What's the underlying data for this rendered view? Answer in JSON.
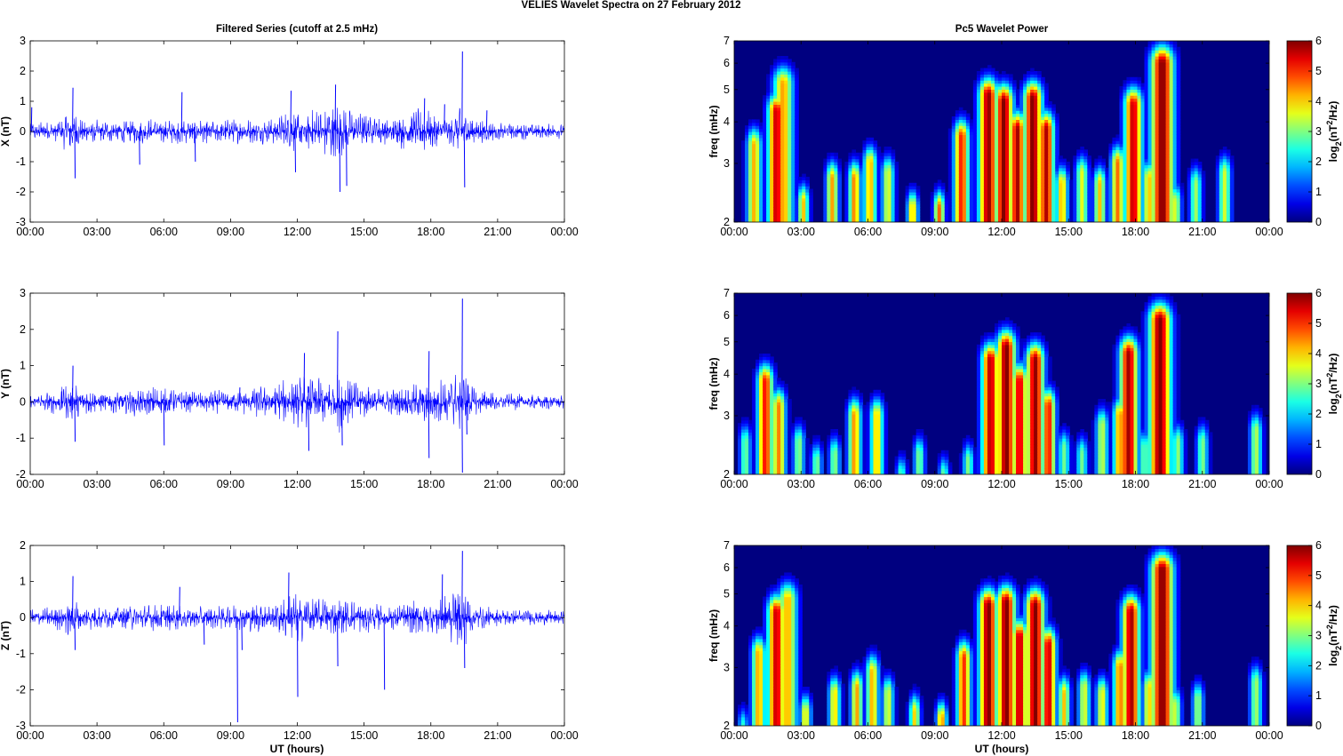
{
  "title": "VELIES Wavelet Spectra on 27 February  2012",
  "left_title": "Filtered Series (cutoff at 2.5 mHz)",
  "right_title": "Pc5 Wavelet Power",
  "x_label": "UT (hours)",
  "colors": {
    "trace": "#0000ff"
  },
  "chart_data": [
    {
      "type": "line",
      "ylabel": "X (nT)",
      "xlim": [
        0,
        24
      ],
      "ylim": [
        -3,
        3
      ],
      "xticks": [
        0,
        3,
        6,
        9,
        12,
        15,
        18,
        21,
        24
      ],
      "xticklabels": [
        "00:00",
        "03:00",
        "06:00",
        "09:00",
        "12:00",
        "15:00",
        "18:00",
        "21:00",
        "00:00"
      ],
      "yticks": [
        -3,
        -2,
        -1,
        0,
        1,
        2,
        3
      ],
      "yticklabels": [
        "-3",
        "-2",
        "-1",
        "0",
        "1",
        "2",
        "3"
      ],
      "noise": [
        [
          0,
          0.35
        ],
        [
          1.2,
          0.35
        ],
        [
          1.8,
          0.9
        ],
        [
          2.2,
          0.5
        ],
        [
          3,
          0.4
        ],
        [
          5,
          0.45
        ],
        [
          8,
          0.4
        ],
        [
          11,
          0.45
        ],
        [
          11.7,
          0.8
        ],
        [
          12.3,
          0.7
        ],
        [
          13,
          0.8
        ],
        [
          13.8,
          1.1
        ],
        [
          14.5,
          0.7
        ],
        [
          16,
          0.45
        ],
        [
          17.5,
          0.8
        ],
        [
          18.3,
          0.6
        ],
        [
          19,
          0.5
        ],
        [
          19.4,
          1.1
        ],
        [
          19.8,
          0.5
        ],
        [
          21,
          0.3
        ],
        [
          24,
          0.25
        ]
      ],
      "spikes": [
        [
          0.05,
          0.8
        ],
        [
          1.9,
          1.45
        ],
        [
          2.0,
          -1.55
        ],
        [
          4.9,
          -1.1
        ],
        [
          6.8,
          1.3
        ],
        [
          7.4,
          -1.0
        ],
        [
          11.7,
          1.35
        ],
        [
          11.9,
          -1.35
        ],
        [
          13.7,
          1.55
        ],
        [
          13.9,
          -2.0
        ],
        [
          14.2,
          -1.8
        ],
        [
          17.7,
          1.1
        ],
        [
          18.6,
          0.9
        ],
        [
          19.4,
          2.65
        ],
        [
          19.5,
          -1.85
        ],
        [
          20.5,
          0.7
        ]
      ]
    },
    {
      "type": "line",
      "ylabel": "Y (nT)",
      "xlim": [
        0,
        24
      ],
      "ylim": [
        -2,
        3
      ],
      "xticks": [
        0,
        3,
        6,
        9,
        12,
        15,
        18,
        21,
        24
      ],
      "xticklabels": [
        "00:00",
        "03:00",
        "06:00",
        "09:00",
        "12:00",
        "15:00",
        "18:00",
        "21:00",
        "00:00"
      ],
      "yticks": [
        -2,
        -1,
        0,
        1,
        2,
        3
      ],
      "yticklabels": [
        "-2",
        "-1",
        "0",
        "1",
        "2",
        "3"
      ],
      "noise": [
        [
          0,
          0.2
        ],
        [
          1,
          0.35
        ],
        [
          2,
          0.6
        ],
        [
          3,
          0.3
        ],
        [
          5.5,
          0.45
        ],
        [
          7,
          0.3
        ],
        [
          9.5,
          0.35
        ],
        [
          11.5,
          0.65
        ],
        [
          12.5,
          0.8
        ],
        [
          13.5,
          0.7
        ],
        [
          14,
          0.9
        ],
        [
          15,
          0.5
        ],
        [
          16,
          0.35
        ],
        [
          17.5,
          0.55
        ],
        [
          18,
          0.6
        ],
        [
          19.4,
          0.9
        ],
        [
          20,
          0.4
        ],
        [
          21,
          0.25
        ],
        [
          24,
          0.2
        ]
      ],
      "spikes": [
        [
          1.9,
          1.0
        ],
        [
          2.0,
          -1.1
        ],
        [
          6.0,
          -1.2
        ],
        [
          9.4,
          0.4
        ],
        [
          12.3,
          1.35
        ],
        [
          12.5,
          -1.35
        ],
        [
          13.8,
          1.95
        ],
        [
          14.0,
          -1.2
        ],
        [
          17.9,
          1.4
        ],
        [
          17.9,
          -1.55
        ],
        [
          19.4,
          2.85
        ],
        [
          19.4,
          -1.95
        ],
        [
          19.6,
          -0.9
        ]
      ]
    },
    {
      "type": "line",
      "ylabel": "Z (nT)",
      "xlim": [
        0,
        24
      ],
      "ylim": [
        -3,
        2
      ],
      "xticks": [
        0,
        3,
        6,
        9,
        12,
        15,
        18,
        21,
        24
      ],
      "xticklabels": [
        "00:00",
        "03:00",
        "06:00",
        "09:00",
        "12:00",
        "15:00",
        "18:00",
        "21:00",
        "00:00"
      ],
      "yticks": [
        -3,
        -2,
        -1,
        0,
        1,
        2
      ],
      "yticklabels": [
        "-3",
        "-2",
        "-1",
        "0",
        "1",
        "2"
      ],
      "noise": [
        [
          0,
          0.25
        ],
        [
          1.5,
          0.4
        ],
        [
          1.9,
          0.7
        ],
        [
          2.3,
          0.35
        ],
        [
          4,
          0.35
        ],
        [
          6,
          0.4
        ],
        [
          8,
          0.3
        ],
        [
          11,
          0.5
        ],
        [
          12,
          0.75
        ],
        [
          13,
          0.6
        ],
        [
          14,
          0.55
        ],
        [
          15,
          0.45
        ],
        [
          16,
          0.35
        ],
        [
          17.5,
          0.5
        ],
        [
          18.4,
          0.6
        ],
        [
          19.4,
          0.9
        ],
        [
          20,
          0.4
        ],
        [
          21,
          0.25
        ],
        [
          24,
          0.2
        ]
      ],
      "spikes": [
        [
          1.9,
          1.15
        ],
        [
          2.0,
          -0.9
        ],
        [
          6.7,
          0.85
        ],
        [
          7.8,
          -0.75
        ],
        [
          9.3,
          -2.9
        ],
        [
          9.5,
          -0.9
        ],
        [
          11.6,
          1.25
        ],
        [
          12.0,
          -2.2
        ],
        [
          13.8,
          -1.35
        ],
        [
          15.9,
          -2.0
        ],
        [
          18.5,
          1.2
        ],
        [
          19.4,
          1.85
        ],
        [
          19.5,
          -1.4
        ]
      ]
    },
    {
      "type": "heatmap",
      "ylabel": "freq (mHz)",
      "y_scale": "log",
      "xlim": [
        0,
        24
      ],
      "ylim": [
        2,
        7
      ],
      "xticks": [
        0,
        3,
        6,
        9,
        12,
        15,
        18,
        21,
        24
      ],
      "xticklabels": [
        "00:00",
        "03:00",
        "06:00",
        "09:00",
        "12:00",
        "15:00",
        "18:00",
        "21:00",
        "00:00"
      ],
      "yticks": [
        2,
        3,
        4,
        5,
        6,
        7
      ],
      "yticklabels": [
        "2",
        "3",
        "4",
        "5",
        "6",
        "7"
      ],
      "colormap": "jet",
      "colorbar": {
        "ticks": [
          0,
          1,
          2,
          3,
          4,
          5,
          6
        ],
        "ticklabels": [
          "0",
          "1",
          "2",
          "3",
          "4",
          "5",
          "6"
        ],
        "label": "log2(nT2/Hz)",
        "label_base": "log",
        "label_sub": "2",
        "label_mid": "(nT",
        "label_sup": "2",
        "label_end": "/Hz)"
      },
      "blobs": [
        [
          0.3,
          2.0,
          2.4,
          1.7
        ],
        [
          0.9,
          2.0,
          4.2,
          3.4
        ],
        [
          1.9,
          4.5,
          5.6,
          4.3
        ],
        [
          2.2,
          3.0,
          4.3,
          5.2
        ],
        [
          3.1,
          2.5,
          4.1,
          2.3
        ],
        [
          4.4,
          2.3,
          4.3,
          2.7
        ],
        [
          5.4,
          2.3,
          4.5,
          2.7
        ],
        [
          6.1,
          5.5,
          4.2,
          3.0
        ],
        [
          6.9,
          2.8,
          3.6,
          2.8
        ],
        [
          8.0,
          2.4,
          4.2,
          2.2
        ],
        [
          9.2,
          2.0,
          4.7,
          2.2
        ],
        [
          10.2,
          3.2,
          5.1,
          3.6
        ],
        [
          11.4,
          5.6,
          5.9,
          4.8
        ],
        [
          12.1,
          5.7,
          6.0,
          4.6
        ],
        [
          12.7,
          5.0,
          5.8,
          3.8
        ],
        [
          13.4,
          5.7,
          6.0,
          4.7
        ],
        [
          14.0,
          4.5,
          5.7,
          3.8
        ],
        [
          14.7,
          2.6,
          4.2,
          2.6
        ],
        [
          15.6,
          2.6,
          3.6,
          2.8
        ],
        [
          16.4,
          2.3,
          4.1,
          2.6
        ],
        [
          17.2,
          3.2,
          4.6,
          3.0
        ],
        [
          17.9,
          4.8,
          5.6,
          4.5
        ],
        [
          18.6,
          2.0,
          4.1,
          2.7
        ],
        [
          19.2,
          4.6,
          6.0,
          6.0
        ],
        [
          19.8,
          2.5,
          3.6,
          2.3
        ],
        [
          20.7,
          1.6,
          3.2,
          2.6
        ],
        [
          22.0,
          1.8,
          3.5,
          2.8
        ]
      ]
    },
    {
      "type": "heatmap",
      "ylabel": "freq (mHz)",
      "y_scale": "log",
      "xlim": [
        0,
        24
      ],
      "ylim": [
        2,
        7
      ],
      "xticks": [
        0,
        3,
        6,
        9,
        12,
        15,
        18,
        21,
        24
      ],
      "xticklabels": [
        "00:00",
        "03:00",
        "06:00",
        "09:00",
        "12:00",
        "15:00",
        "18:00",
        "21:00",
        "00:00"
      ],
      "yticks": [
        2,
        3,
        4,
        5,
        6,
        7
      ],
      "yticklabels": [
        "2",
        "3",
        "4",
        "5",
        "6",
        "7"
      ],
      "colormap": "jet",
      "colorbar": {
        "ticks": [
          0,
          1,
          2,
          3,
          4,
          5,
          6
        ],
        "ticklabels": [
          "0",
          "1",
          "2",
          "3",
          "4",
          "5",
          "6"
        ],
        "label": "log2(nT2/Hz)",
        "label_base": "log",
        "label_sub": "2",
        "label_mid": "(nT",
        "label_sup": "2",
        "label_end": "/Hz)"
      },
      "blobs": [
        [
          0.5,
          1.4,
          2.9,
          2.5
        ],
        [
          1.4,
          4.3,
          5.2,
          3.8
        ],
        [
          2.0,
          3.0,
          4.5,
          3.2
        ],
        [
          2.9,
          1.5,
          3.1,
          2.5
        ],
        [
          3.7,
          1.5,
          3.0,
          2.2
        ],
        [
          4.5,
          1.4,
          3.1,
          2.3
        ],
        [
          5.4,
          4.2,
          4.4,
          3.0
        ],
        [
          6.4,
          4.3,
          4.1,
          3.0
        ],
        [
          7.5,
          1.5,
          2.8,
          2.0
        ],
        [
          8.3,
          1.5,
          3.0,
          2.3
        ],
        [
          9.4,
          1.4,
          2.9,
          2.0
        ],
        [
          10.5,
          1.5,
          3.0,
          2.2
        ],
        [
          11.5,
          3.8,
          5.7,
          4.4
        ],
        [
          12.2,
          5.5,
          6.0,
          4.8
        ],
        [
          12.8,
          4.0,
          5.5,
          3.8
        ],
        [
          13.5,
          5.0,
          5.9,
          4.4
        ],
        [
          14.1,
          3.0,
          5.2,
          3.2
        ],
        [
          14.8,
          1.6,
          2.9,
          2.4
        ],
        [
          15.6,
          1.5,
          2.9,
          2.3
        ],
        [
          16.5,
          1.7,
          3.4,
          2.8
        ],
        [
          17.3,
          3.3,
          4.5,
          3.0
        ],
        [
          17.7,
          4.7,
          5.8,
          4.6
        ],
        [
          18.4,
          1.5,
          2.9,
          2.4
        ],
        [
          19.1,
          4.5,
          6.0,
          5.8
        ],
        [
          19.9,
          1.6,
          3.1,
          2.5
        ],
        [
          21.0,
          1.6,
          3.0,
          2.5
        ],
        [
          23.4,
          1.6,
          3.3,
          2.7
        ]
      ]
    },
    {
      "type": "heatmap",
      "ylabel": "freq (mHz)",
      "y_scale": "log",
      "xlim": [
        0,
        24
      ],
      "ylim": [
        2,
        7
      ],
      "xticks": [
        0,
        3,
        6,
        9,
        12,
        15,
        18,
        21,
        24
      ],
      "xticklabels": [
        "00:00",
        "03:00",
        "06:00",
        "09:00",
        "12:00",
        "15:00",
        "18:00",
        "21:00",
        "00:00"
      ],
      "yticks": [
        2,
        3,
        4,
        5,
        6,
        7
      ],
      "yticklabels": [
        "2",
        "3",
        "4",
        "5",
        "6",
        "7"
      ],
      "colormap": "jet",
      "colorbar": {
        "ticks": [
          0,
          1,
          2,
          3,
          4,
          5,
          6
        ],
        "ticklabels": [
          "0",
          "1",
          "2",
          "3",
          "4",
          "5",
          "6"
        ],
        "label": "log2(nT2/Hz)",
        "label_base": "log",
        "label_sub": "2",
        "label_mid": "(nT",
        "label_sup": "2",
        "label_end": "/Hz)"
      },
      "blobs": [
        [
          0.4,
          1.8,
          2.5,
          2.0
        ],
        [
          1.1,
          2.2,
          4.3,
          3.3
        ],
        [
          1.9,
          4.4,
          5.6,
          4.4
        ],
        [
          2.4,
          2.6,
          4.2,
          4.8
        ],
        [
          3.2,
          2.4,
          3.9,
          2.2
        ],
        [
          4.5,
          2.2,
          4.0,
          2.5
        ],
        [
          5.5,
          2.2,
          4.3,
          2.6
        ],
        [
          6.2,
          4.8,
          4.2,
          2.9
        ],
        [
          6.9,
          2.5,
          3.6,
          2.5
        ],
        [
          8.1,
          2.2,
          4.0,
          2.2
        ],
        [
          9.3,
          2.0,
          4.5,
          2.1
        ],
        [
          10.3,
          3.1,
          5.0,
          3.2
        ],
        [
          11.4,
          5.6,
          6.0,
          4.6
        ],
        [
          12.2,
          5.7,
          6.0,
          4.7
        ],
        [
          12.8,
          4.7,
          5.7,
          3.7
        ],
        [
          13.5,
          5.6,
          6.0,
          4.6
        ],
        [
          14.1,
          4.4,
          5.6,
          3.5
        ],
        [
          14.8,
          2.6,
          4.1,
          2.5
        ],
        [
          15.7,
          2.5,
          3.6,
          2.6
        ],
        [
          16.5,
          2.2,
          3.8,
          2.5
        ],
        [
          17.3,
          3.1,
          4.6,
          3.0
        ],
        [
          17.8,
          4.6,
          5.8,
          4.4
        ],
        [
          18.6,
          2.0,
          4.0,
          2.6
        ],
        [
          19.2,
          4.5,
          6.0,
          5.9
        ],
        [
          19.8,
          2.4,
          3.5,
          2.3
        ],
        [
          20.8,
          1.7,
          3.2,
          2.4
        ],
        [
          23.4,
          1.6,
          3.2,
          2.7
        ]
      ]
    }
  ]
}
